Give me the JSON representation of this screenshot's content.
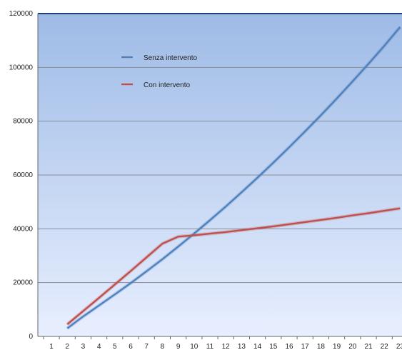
{
  "chart_data": {
    "type": "line",
    "title": "",
    "xlabel": "",
    "ylabel": "",
    "x": [
      2,
      3,
      4,
      5,
      6,
      7,
      8,
      9,
      10,
      11,
      12,
      13,
      14,
      15,
      16,
      17,
      18,
      19,
      20,
      21,
      22,
      23
    ],
    "x_ticks": [
      "1",
      "2",
      "3",
      "4",
      "5",
      "6",
      "7",
      "8",
      "9",
      "10",
      "11",
      "12",
      "13",
      "14",
      "15",
      "16",
      "17",
      "18",
      "19",
      "20",
      "21",
      "22",
      "23"
    ],
    "y_ticks": [
      "0",
      "20000",
      "40000",
      "60000",
      "80000",
      "100000",
      "120000"
    ],
    "ylim": [
      0,
      120000
    ],
    "grid": true,
    "legend_position": "top-left",
    "background": "gradient blue",
    "series": [
      {
        "name": "Senza intervento",
        "color": "#4f81bd",
        "values": [
          3000,
          7400,
          11500,
          15600,
          19800,
          24200,
          28700,
          33400,
          38200,
          43200,
          48300,
          53600,
          59000,
          64600,
          70300,
          76200,
          82200,
          88400,
          94800,
          101300,
          108000,
          115000
        ]
      },
      {
        "name": "Con intervento",
        "color": "#c0504d",
        "values": [
          4500,
          9400,
          14300,
          19300,
          24300,
          29400,
          34500,
          37100,
          37600,
          38200,
          38800,
          39500,
          40200,
          40900,
          41700,
          42500,
          43300,
          44100,
          45000,
          45800,
          46700,
          47600
        ]
      }
    ]
  }
}
